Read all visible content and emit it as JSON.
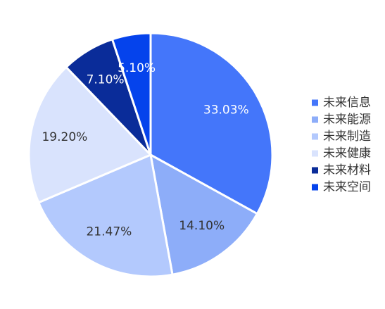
{
  "chart_data": {
    "type": "pie",
    "title": "",
    "legend_position": "right",
    "series": [
      {
        "name": "",
        "slices": [
          {
            "label": "未来信息",
            "value": 33.03,
            "value_label": "33.03%",
            "color": "#4476FA",
            "label_color": "#ffffff"
          },
          {
            "label": "未来能源",
            "value": 14.1,
            "value_label": "14.10%",
            "color": "#8DADF9",
            "label_color": "#333333"
          },
          {
            "label": "未来制造",
            "value": 21.47,
            "value_label": "21.47%",
            "color": "#B3C9FD",
            "label_color": "#333333"
          },
          {
            "label": "未来健康",
            "value": 19.2,
            "value_label": "19.20%",
            "color": "#D9E3FD",
            "label_color": "#333333"
          },
          {
            "label": "未来材料",
            "value": 7.1,
            "value_label": "7.10%",
            "color": "#0A2C99",
            "label_color": "#ffffff"
          },
          {
            "label": "未来空间",
            "value": 5.1,
            "value_label": "5.10%",
            "color": "#0543EC",
            "label_color": "#ffffff"
          }
        ]
      }
    ]
  }
}
